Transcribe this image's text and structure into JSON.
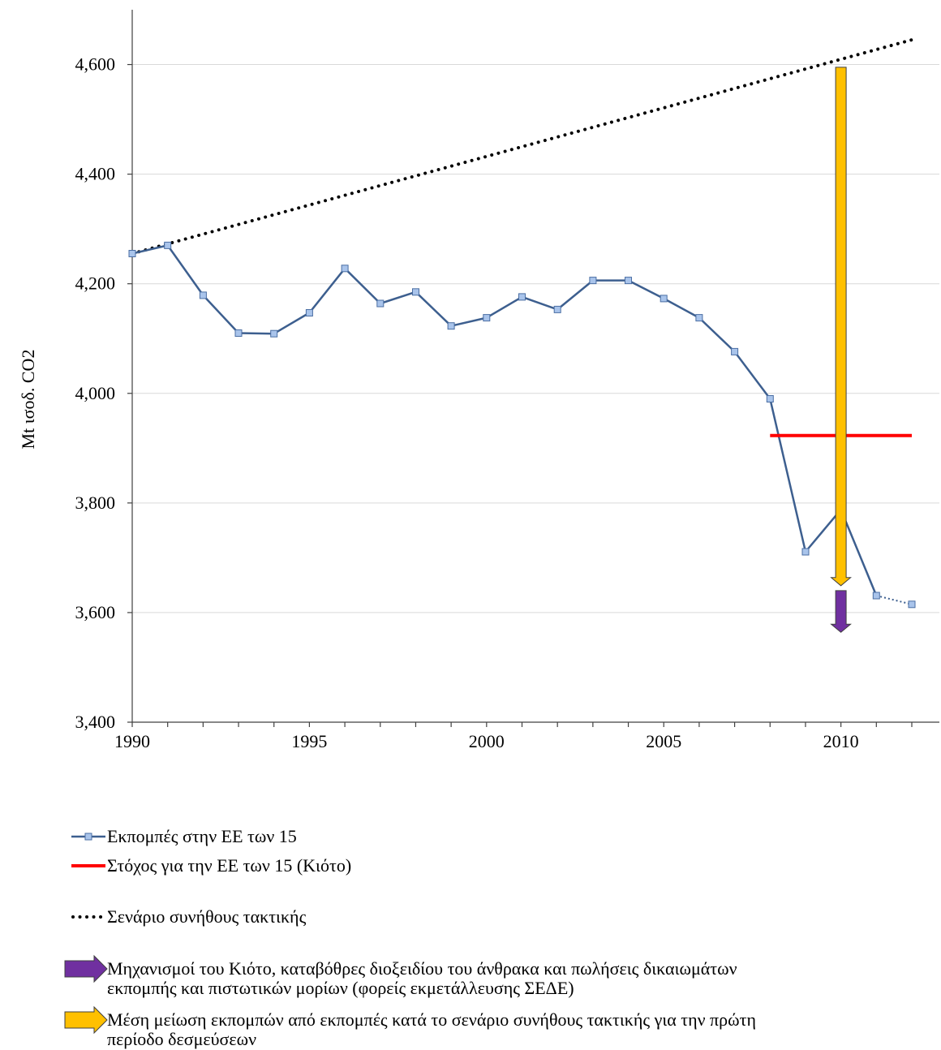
{
  "chart_data": {
    "type": "line",
    "ylabel": "Mt ισοδ. CO2",
    "xlim": [
      1990,
      2012
    ],
    "ylim": [
      3400,
      4700
    ],
    "grid": "horizontal",
    "legend": "bottom",
    "x_ticks": [
      1990,
      1995,
      2000,
      2005,
      2010
    ],
    "x_tick_labels": [
      "1990",
      "1995",
      "2000",
      "2005",
      "2010"
    ],
    "y_ticks": [
      3400,
      3600,
      3800,
      4000,
      4200,
      4400,
      4600
    ],
    "y_tick_labels": [
      "3,400",
      "3,600",
      "3,800",
      "4,000",
      "4,200",
      "4,400",
      "4,600"
    ],
    "series": [
      {
        "type": "line",
        "line_style": "solid",
        "marker": "square",
        "color": "#3d5f8f",
        "marker_color": "#a9c4eb",
        "marker_stroke": "#4a6ea3",
        "x": [
          1990,
          1991,
          1992,
          1993,
          1994,
          1995,
          1996,
          1997,
          1998,
          1999,
          2000,
          2001,
          2002,
          2003,
          2004,
          2005,
          2006,
          2007,
          2008,
          2009,
          2010,
          2011,
          2012
        ],
        "y": [
          4255,
          4270,
          4179,
          4110,
          4109,
          4147,
          4228,
          4164,
          4185,
          4123,
          4138,
          4176,
          4153,
          4206,
          4206,
          4173,
          4138,
          4076,
          3990,
          3711,
          3788,
          3631,
          3615
        ],
        "dotted_from_x": 2011,
        "legend_lines": [
          "Εκπομπές στην ΕΕ των 15"
        ]
      },
      {
        "type": "line",
        "line_style": "solid",
        "color": "#ff0000",
        "x": [
          2008,
          2012
        ],
        "y": [
          3923,
          3923
        ],
        "legend_lines": [
          "Στόχος για την ΕΕ των 15 (Κιότο)"
        ]
      },
      {
        "type": "line",
        "line_style": "dotted",
        "color": "#000000",
        "x": [
          1990,
          2012
        ],
        "y": [
          4255,
          4645
        ],
        "legend_lines": [
          "Σενάριο συνήθους τακτικής"
        ]
      },
      {
        "type": "arrow",
        "direction": "down",
        "color": "#7030a0",
        "x": 2010,
        "from": 3640,
        "to": 3564,
        "legend_lines": [
          "Μηχανισμοί του Κιότο, καταβόθρες διοξειδίου του άνθρακα και πωλήσεις δικαιωμάτων",
          "εκπομπής και πιστωτικών μορίων (φορείς εκμετάλλευσης ΣΕΔΕ)"
        ]
      },
      {
        "type": "arrow",
        "direction": "down",
        "color": "#ffc000",
        "x": 2010,
        "from": 4595,
        "to": 3649,
        "legend_lines": [
          "Μέση μείωση εκπομπών από εκπομπές κατά το σενάριο συνήθους τακτικής για την πρώτη",
          "περίοδο δεσμεύσεων"
        ]
      }
    ]
  }
}
